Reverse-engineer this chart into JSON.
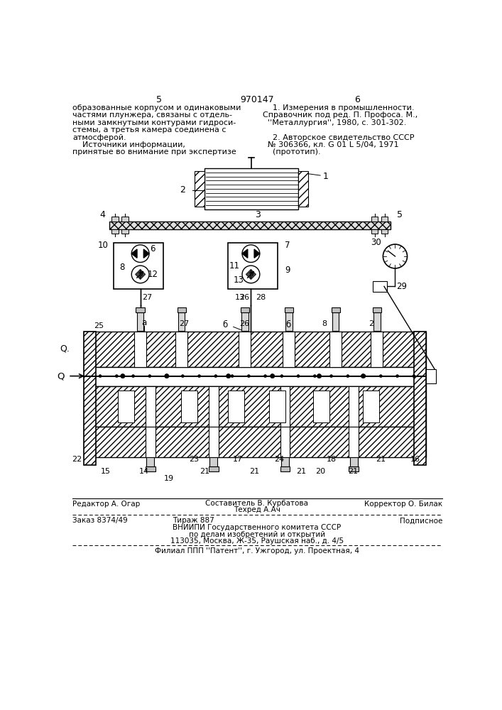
{
  "bg_color": "#ffffff",
  "text_color": "#000000",
  "page_left": "5",
  "page_right": "6",
  "patent_number": "970147",
  "left_col_lines": [
    "образованные корпусом и одинаковыми",
    "частями плунжера, связаны с отдель-",
    "ными замкнутыми контурами гидроси-",
    "стемы, а третья камера соединена с",
    "атмосферой.",
    "    Источники информации,",
    "принятые во внимание при экспертизе"
  ],
  "right_col_lines": [
    "    1. Измерения в промышленности.",
    "Справочник под ред. П. Профоса. М.,",
    "  ''Металлургия'', 1980, с. 301-302.",
    "",
    "    2. Авторское свидетельство СССР",
    "  № 306366, кл. G 01 L 5/04, 1971",
    "    (прототип)."
  ],
  "bottom_editor": "Редактор А. Огар",
  "bottom_composer": "Составитель В. Курбатова",
  "bottom_techred": "Техред А.Ач",
  "bottom_corrector": "Корректор О. Билак",
  "bottom_order": "Заказ 8374/49",
  "bottom_tirazh": "Тираж 887",
  "bottom_podpisnoe": "Подписное",
  "bottom_vniip": "ВНИИПИ Государственного комитета СССР",
  "bottom_po_delam": "по делам изобретений и открытий",
  "bottom_address": "113035, Москва, Ж-35, Раушская наб., д. 4/5",
  "bottom_filial": "Филиал ППП ''Патент'', г. Ужгород, ул. Проектная, 4"
}
